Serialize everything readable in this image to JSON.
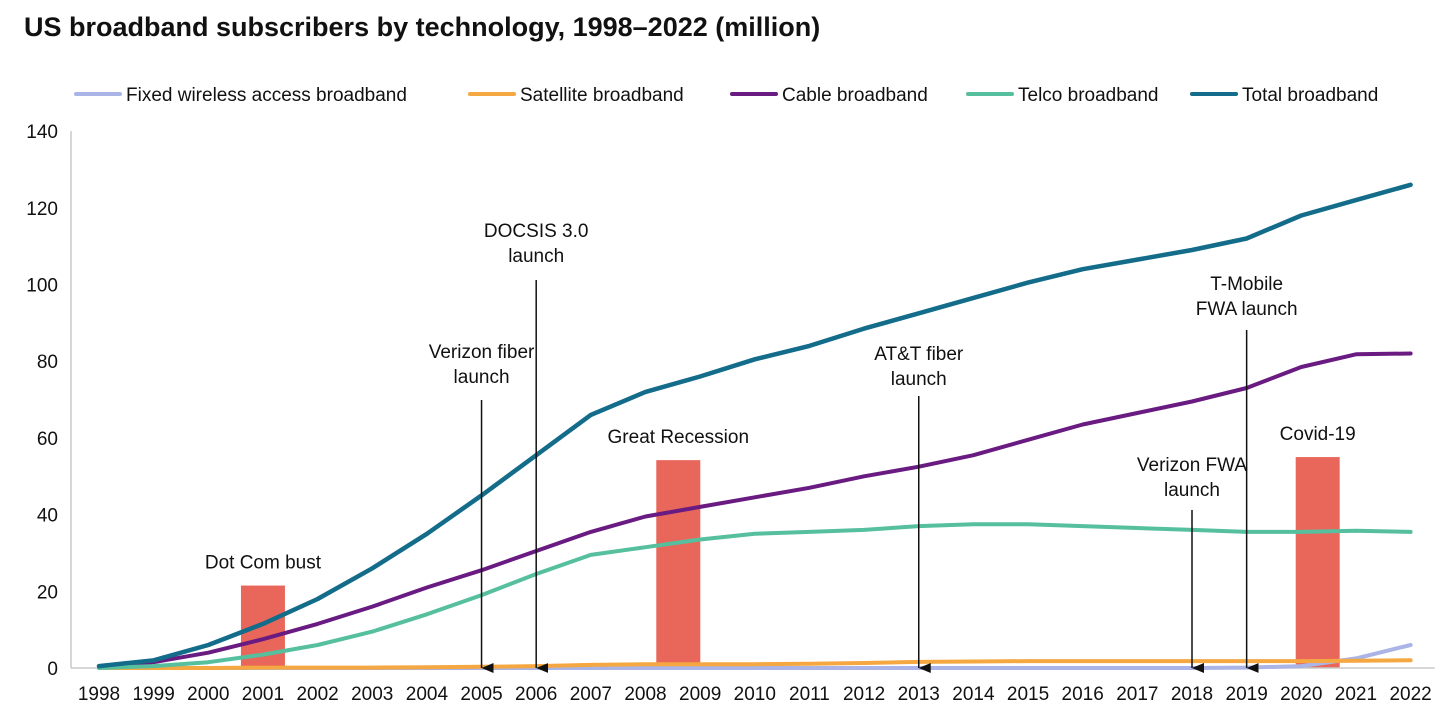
{
  "title": "US broadband subscribers by technology, 1998–2022 (million)",
  "colors": {
    "fixed_wireless": "#aab4e6",
    "satellite": "#f5a742",
    "cable": "#6a1b82",
    "telco": "#55bf9e",
    "total": "#126c8a",
    "event_bar": "#e9675a",
    "axis": "#c8c8c8",
    "annotation": "#111111"
  },
  "chart_data": {
    "type": "line",
    "title": "US broadband subscribers by technology, 1998–2022 (million)",
    "x": [
      1998,
      1999,
      2000,
      2001,
      2002,
      2003,
      2004,
      2005,
      2006,
      2007,
      2008,
      2009,
      2010,
      2011,
      2012,
      2013,
      2014,
      2015,
      2016,
      2017,
      2018,
      2019,
      2020,
      2021,
      2022
    ],
    "ylim": [
      0,
      140
    ],
    "yticks": [
      0,
      20,
      40,
      60,
      80,
      100,
      120,
      140
    ],
    "grid": false,
    "legend_position": "top",
    "series": [
      {
        "name": "Fixed wireless access broadband",
        "key": "fixed_wireless",
        "values": [
          0,
          0,
          0,
          0,
          0,
          0,
          0,
          0,
          0,
          0,
          0,
          0,
          0,
          0,
          0,
          0,
          0,
          0,
          0,
          0,
          0,
          0.1,
          0.5,
          2.5,
          6.0
        ]
      },
      {
        "name": "Satellite broadband",
        "key": "satellite",
        "values": [
          0,
          0,
          0,
          0.1,
          0.1,
          0.1,
          0.2,
          0.3,
          0.5,
          0.8,
          1.0,
          1.0,
          1.0,
          1.1,
          1.3,
          1.6,
          1.7,
          1.8,
          1.8,
          1.8,
          1.8,
          1.8,
          1.8,
          1.9,
          2.0
        ]
      },
      {
        "name": "Cable broadband",
        "key": "cable",
        "values": [
          0.5,
          1.5,
          4.0,
          7.5,
          11.5,
          16.0,
          21.0,
          25.5,
          30.5,
          35.5,
          39.5,
          42.0,
          44.5,
          47.0,
          50.0,
          52.5,
          55.5,
          59.5,
          63.5,
          66.5,
          69.5,
          73.0,
          78.5,
          81.8,
          82.0
        ]
      },
      {
        "name": "Telco broadband",
        "key": "telco",
        "values": [
          0,
          0.5,
          1.5,
          3.5,
          6.0,
          9.5,
          14.0,
          19.0,
          24.5,
          29.5,
          31.5,
          33.5,
          35.0,
          35.5,
          36.0,
          37.0,
          37.5,
          37.5,
          37.0,
          36.5,
          36.0,
          35.5,
          35.5,
          35.8,
          35.5
        ]
      },
      {
        "name": "Total broadband",
        "key": "total",
        "values": [
          0.5,
          2.0,
          6.0,
          11.5,
          18.0,
          26.0,
          35.0,
          45.0,
          55.5,
          66.0,
          72.0,
          76.0,
          80.5,
          84.0,
          88.5,
          92.5,
          96.5,
          100.5,
          104.0,
          106.5,
          109.0,
          112.0,
          118.0,
          122.0,
          126.0
        ]
      }
    ],
    "event_bars": [
      {
        "label": "Dot Com bust",
        "year": 2001,
        "value": 21.5
      },
      {
        "label": "Great Recession",
        "year": 2008.6,
        "value": 54.2
      },
      {
        "label": "Covid-19",
        "year": 2020.3,
        "value": 55.0
      }
    ],
    "launch_markers": [
      {
        "label_lines": [
          "Verizon fiber",
          "launch"
        ],
        "year": 2005
      },
      {
        "label_lines": [
          "DOCSIS 3.0",
          "launch"
        ],
        "year": 2006
      },
      {
        "label_lines": [
          "AT&T fiber",
          "launch"
        ],
        "year": 2013
      },
      {
        "label_lines": [
          "Verizon FWA",
          "launch"
        ],
        "year": 2018
      },
      {
        "label_lines": [
          "T-Mobile",
          "FWA launch"
        ],
        "year": 2019
      }
    ]
  }
}
